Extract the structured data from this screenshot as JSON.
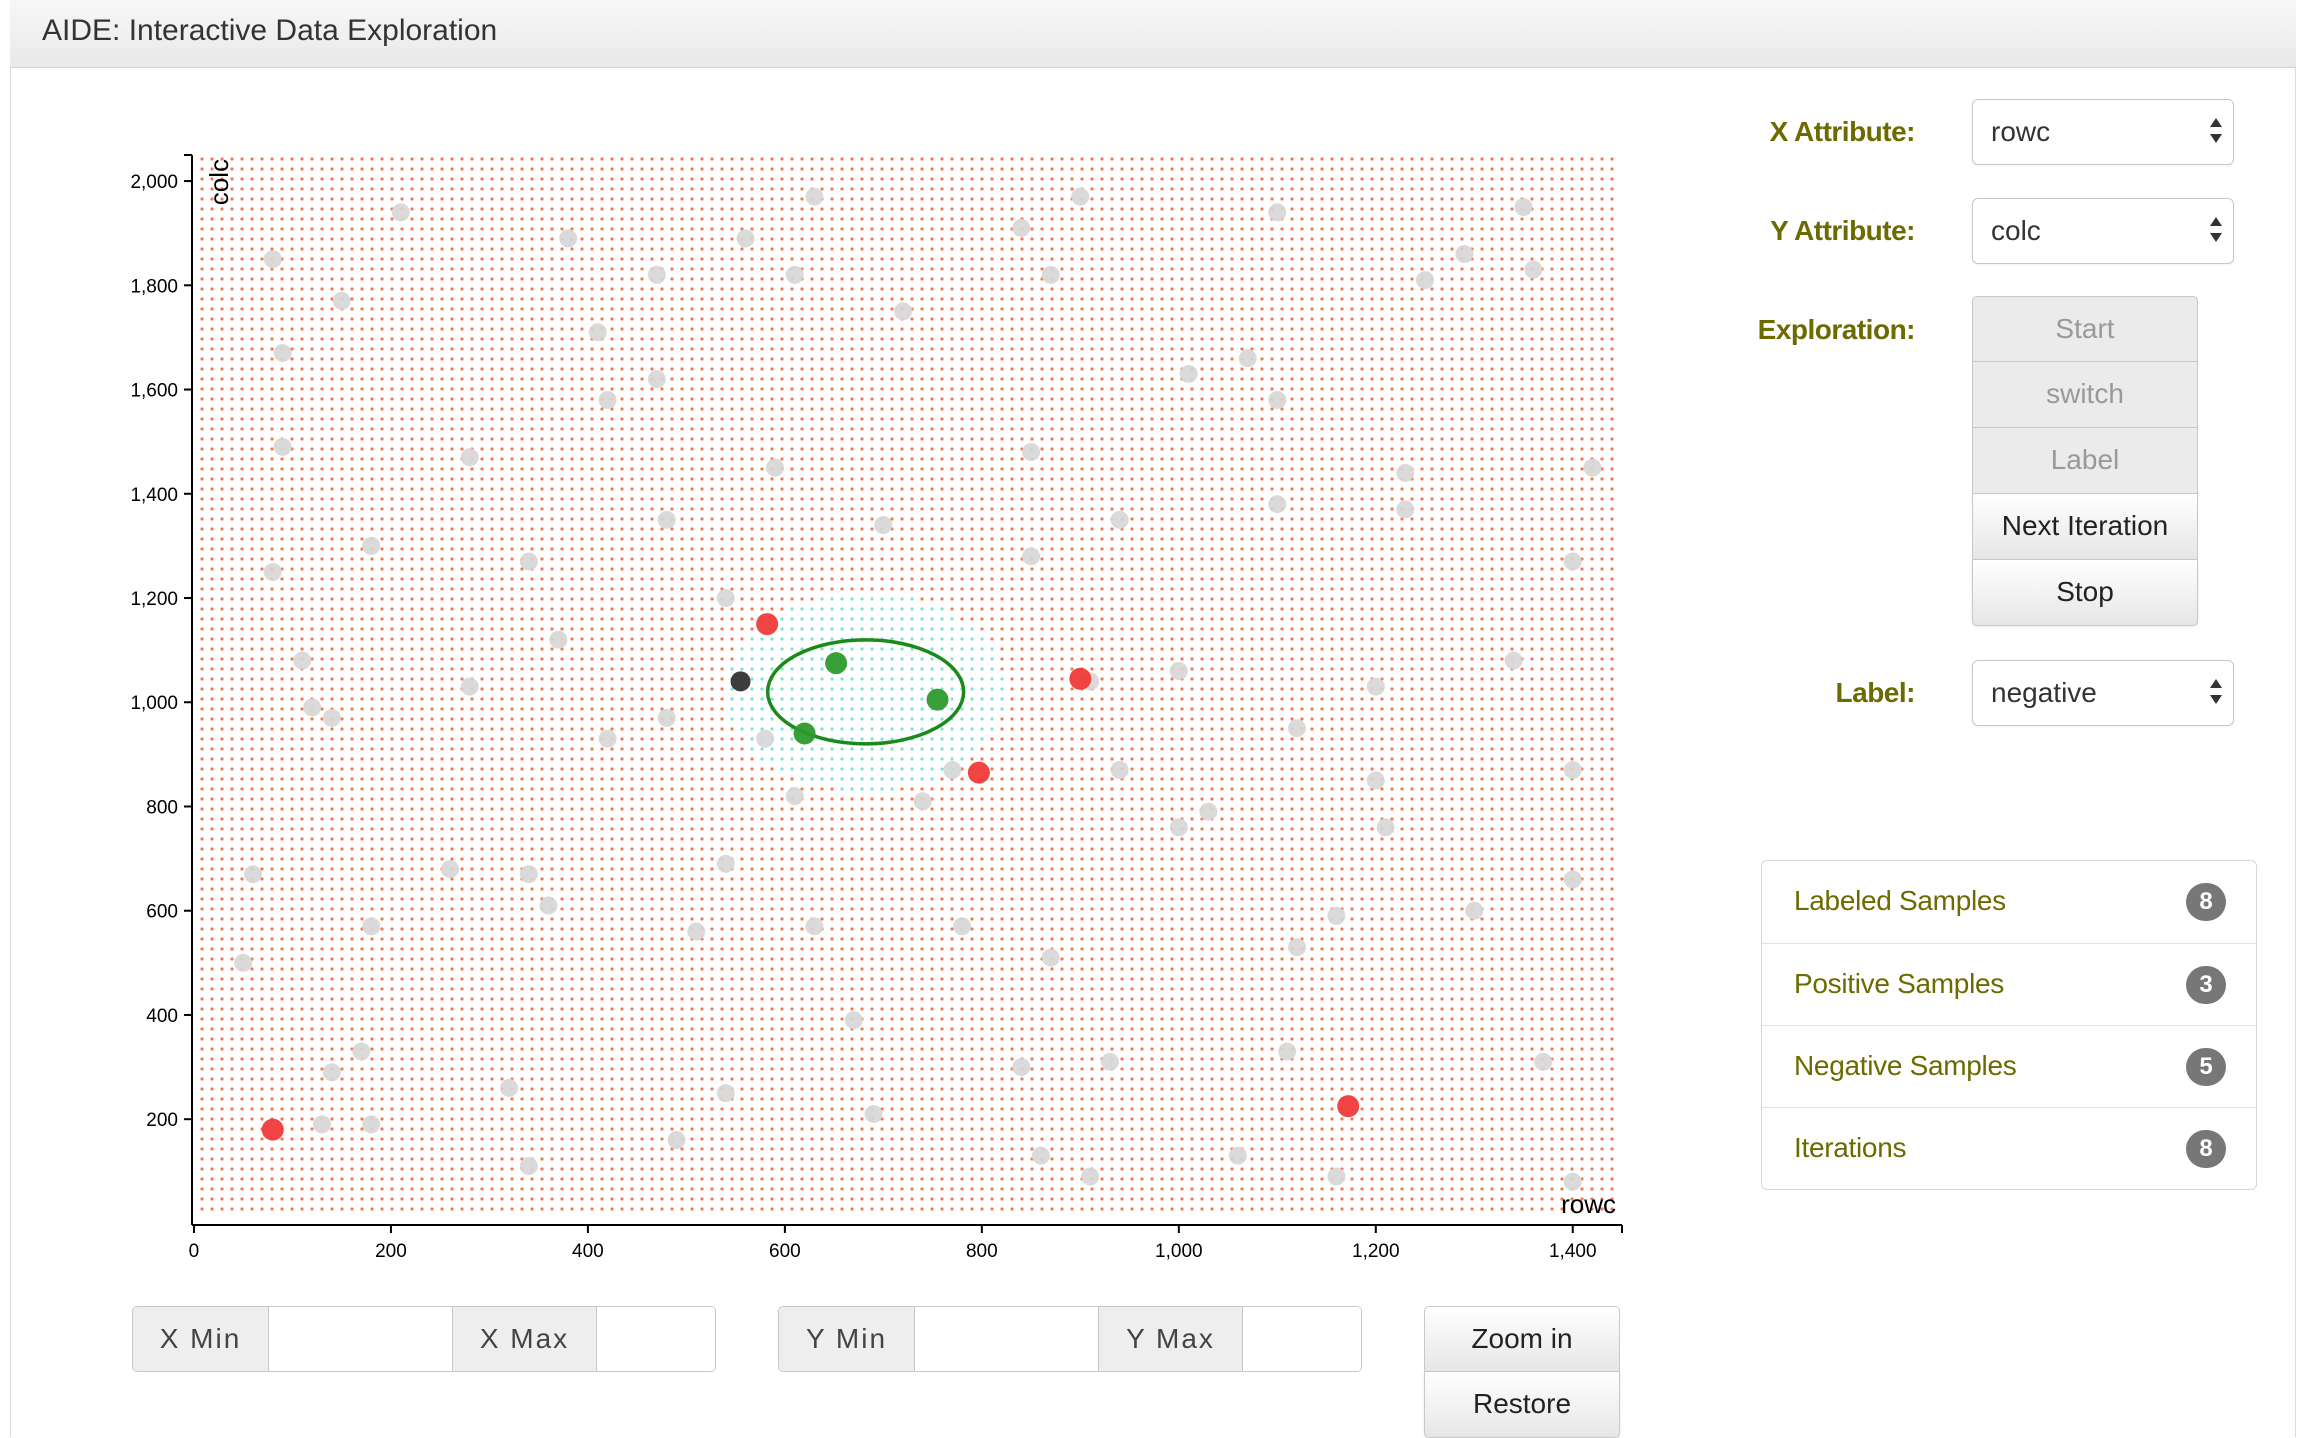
{
  "app": {
    "title": "AIDE: Interactive Data Exploration"
  },
  "controls": {
    "x_attribute_label": "X Attribute:",
    "x_attribute_value": "rowc",
    "y_attribute_label": "Y Attribute:",
    "y_attribute_value": "colc",
    "exploration_label": "Exploration:",
    "buttons": {
      "start": "Start",
      "switch": "switch",
      "label": "Label",
      "next_iteration": "Next Iteration",
      "stop": "Stop"
    },
    "label_label": "Label:",
    "label_value": "negative"
  },
  "stats": [
    {
      "label": "Labeled Samples",
      "count": "8"
    },
    {
      "label": "Positive Samples",
      "count": "3"
    },
    {
      "label": "Negative Samples",
      "count": "5"
    },
    {
      "label": "Iterations",
      "count": "8"
    }
  ],
  "range": {
    "x_min_label": "X  Min",
    "x_max_label": "X  Max",
    "y_min_label": "Y  Min",
    "y_max_label": "Y  Max",
    "x_min_value": "",
    "x_max_value": "",
    "y_min_value": "",
    "y_max_value": ""
  },
  "zoom": {
    "zoom_in": "Zoom in",
    "restore": "Restore"
  },
  "colors": {
    "grid_dot": "#f07a55",
    "region_dot": "#7fe0d8",
    "unlabeled": "#d6d6d6",
    "positive": "#2e9a2e",
    "negative": "#f03a3a",
    "current": "#333333",
    "boundary": "#1a8a1a",
    "label_text": "#6b6b00"
  },
  "chart_data": {
    "type": "scatter",
    "xlabel": "rowc",
    "ylabel": "colc",
    "xlim": [
      -2,
      1450
    ],
    "ylim": [
      -3,
      2050
    ],
    "x_ticks": [
      0,
      200,
      400,
      600,
      800,
      1000,
      1200,
      1400
    ],
    "y_ticks": [
      200,
      400,
      600,
      800,
      1000,
      1200,
      1400,
      1600,
      1800,
      2000
    ],
    "x_tick_labels": [
      "0",
      "200",
      "400",
      "600",
      "800",
      "1,000",
      "1,200",
      "1,400"
    ],
    "y_tick_labels": [
      "200",
      "400",
      "600",
      "800",
      "1,000",
      "1,200",
      "1,400",
      "1,600",
      "1,800",
      "2,000"
    ],
    "grid_dots": true,
    "series": [
      {
        "name": "unlabeled",
        "points": [
          [
            210,
            1940
          ],
          [
            80,
            1850
          ],
          [
            380,
            1890
          ],
          [
            470,
            1820
          ],
          [
            560,
            1890
          ],
          [
            630,
            1970
          ],
          [
            840,
            1910
          ],
          [
            900,
            1970
          ],
          [
            870,
            1820
          ],
          [
            1100,
            1940
          ],
          [
            1250,
            1810
          ],
          [
            1290,
            1860
          ],
          [
            1350,
            1950
          ],
          [
            1360,
            1830
          ],
          [
            150,
            1770
          ],
          [
            90,
            1670
          ],
          [
            410,
            1710
          ],
          [
            720,
            1750
          ],
          [
            610,
            1820
          ],
          [
            420,
            1580
          ],
          [
            470,
            1620
          ],
          [
            1010,
            1630
          ],
          [
            1070,
            1660
          ],
          [
            1100,
            1580
          ],
          [
            90,
            1490
          ],
          [
            280,
            1470
          ],
          [
            590,
            1450
          ],
          [
            850,
            1480
          ],
          [
            1230,
            1440
          ],
          [
            1420,
            1450
          ],
          [
            480,
            1350
          ],
          [
            700,
            1340
          ],
          [
            940,
            1350
          ],
          [
            1100,
            1380
          ],
          [
            1230,
            1370
          ],
          [
            180,
            1300
          ],
          [
            340,
            1270
          ],
          [
            850,
            1280
          ],
          [
            1400,
            1270
          ],
          [
            80,
            1250
          ],
          [
            540,
            1200
          ],
          [
            370,
            1120
          ],
          [
            110,
            1080
          ],
          [
            280,
            1030
          ],
          [
            1000,
            1060
          ],
          [
            910,
            1040
          ],
          [
            1200,
            1030
          ],
          [
            1340,
            1080
          ],
          [
            120,
            990
          ],
          [
            140,
            970
          ],
          [
            420,
            930
          ],
          [
            480,
            970
          ],
          [
            580,
            930
          ],
          [
            1120,
            950
          ],
          [
            1200,
            850
          ],
          [
            940,
            870
          ],
          [
            770,
            870
          ],
          [
            610,
            820
          ],
          [
            740,
            810
          ],
          [
            1030,
            790
          ],
          [
            1000,
            760
          ],
          [
            1210,
            760
          ],
          [
            1400,
            870
          ],
          [
            60,
            670
          ],
          [
            260,
            680
          ],
          [
            340,
            670
          ],
          [
            360,
            610
          ],
          [
            540,
            690
          ],
          [
            180,
            570
          ],
          [
            510,
            560
          ],
          [
            630,
            570
          ],
          [
            780,
            570
          ],
          [
            1120,
            530
          ],
          [
            1160,
            590
          ],
          [
            1300,
            600
          ],
          [
            1400,
            660
          ],
          [
            50,
            500
          ],
          [
            870,
            510
          ],
          [
            670,
            390
          ],
          [
            170,
            330
          ],
          [
            140,
            290
          ],
          [
            320,
            260
          ],
          [
            540,
            250
          ],
          [
            840,
            300
          ],
          [
            930,
            310
          ],
          [
            1110,
            330
          ],
          [
            1370,
            310
          ],
          [
            130,
            190
          ],
          [
            180,
            190
          ],
          [
            690,
            210
          ],
          [
            490,
            160
          ],
          [
            860,
            130
          ],
          [
            340,
            110
          ],
          [
            910,
            90
          ],
          [
            1060,
            130
          ],
          [
            1160,
            90
          ],
          [
            1400,
            80
          ]
        ]
      },
      {
        "name": "positive",
        "points": [
          [
            652,
            1075
          ],
          [
            755,
            1005
          ],
          [
            620,
            940
          ]
        ]
      },
      {
        "name": "negative",
        "points": [
          [
            582,
            1150
          ],
          [
            900,
            1045
          ],
          [
            797,
            865
          ],
          [
            1172,
            225
          ],
          [
            80,
            180
          ]
        ]
      },
      {
        "name": "current",
        "points": [
          [
            555,
            1040
          ]
        ]
      }
    ],
    "decision_ellipse": {
      "cx": 682,
      "cy": 1020,
      "rx": 100,
      "ry": 100
    }
  }
}
